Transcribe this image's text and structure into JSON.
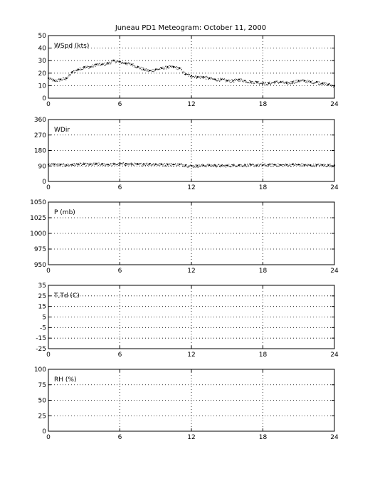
{
  "title": "Juneau PD1 Meteogram:    October 11, 2000",
  "chart_data": [
    {
      "type": "scatter",
      "panel_label": "WSpd (kts)",
      "xlim": [
        0,
        24
      ],
      "ylim": [
        0,
        50
      ],
      "xticks": [
        0,
        6,
        12,
        18,
        24
      ],
      "yticks": [
        0,
        10,
        20,
        30,
        40,
        50
      ],
      "grid": true,
      "series": [
        {
          "x": [
            0,
            0.5,
            1,
            1.5,
            2,
            2.5,
            3,
            3.5,
            4,
            4.5,
            5,
            5.5,
            6,
            6.5,
            7,
            7.5,
            8,
            8.5,
            9,
            9.5,
            10,
            10.5,
            11,
            11.5,
            12,
            12.5,
            13,
            13.5,
            14,
            14.5,
            15,
            15.5,
            16,
            16.5,
            17,
            17.5,
            18,
            18.5,
            19,
            19.5,
            20,
            20.5,
            21,
            21.5,
            22,
            22.5,
            23,
            23.5,
            24
          ],
          "y": [
            16,
            14,
            15,
            16,
            21,
            23,
            25,
            25,
            27,
            27,
            28,
            30,
            29,
            28,
            27,
            25,
            23,
            22,
            23,
            24,
            25,
            25,
            24,
            19,
            18,
            17,
            17,
            16,
            15,
            15,
            14,
            14,
            15,
            14,
            13,
            13,
            12,
            12,
            13,
            13,
            12,
            13,
            14,
            14,
            13,
            13,
            12,
            11,
            10
          ]
        }
      ]
    },
    {
      "type": "scatter",
      "panel_label": "WDir",
      "xlim": [
        0,
        24
      ],
      "ylim": [
        0,
        360
      ],
      "xticks": [
        0,
        6,
        12,
        18,
        24
      ],
      "yticks": [
        0,
        90,
        180,
        270,
        360
      ],
      "grid": true,
      "series": [
        {
          "x": [
            0,
            0.5,
            1,
            1.5,
            2,
            2.5,
            3,
            3.5,
            4,
            4.5,
            5,
            5.5,
            6,
            6.5,
            7,
            7.5,
            8,
            8.5,
            9,
            9.5,
            10,
            10.5,
            11,
            11.5,
            12,
            12.5,
            13,
            13.5,
            14,
            14.5,
            15,
            15.5,
            16,
            16.5,
            17,
            17.5,
            18,
            18.5,
            19,
            19.5,
            20,
            20.5,
            21,
            21.5,
            22,
            22.5,
            23,
            23.5,
            24
          ],
          "y": [
            98,
            100,
            97,
            96,
            99,
            101,
            100,
            100,
            102,
            100,
            99,
            101,
            102,
            103,
            101,
            100,
            102,
            103,
            101,
            100,
            100,
            99,
            100,
            95,
            91,
            92,
            94,
            95,
            94,
            92,
            93,
            95,
            96,
            95,
            96,
            95,
            96,
            97,
            98,
            96,
            97,
            99,
            98,
            96,
            95,
            96,
            96,
            95,
            94
          ]
        }
      ]
    },
    {
      "type": "scatter",
      "panel_label": "P (mb)",
      "xlim": [
        0,
        24
      ],
      "ylim": [
        950,
        1050
      ],
      "xticks": [
        0,
        6,
        12,
        18,
        24
      ],
      "yticks": [
        950,
        975,
        1000,
        1025,
        1050
      ],
      "grid": true,
      "series": []
    },
    {
      "type": "scatter",
      "panel_label": "T,Td (C)",
      "xlim": [
        0,
        24
      ],
      "ylim": [
        -25,
        35
      ],
      "xticks": [
        0,
        6,
        12,
        18,
        24
      ],
      "yticks": [
        -25,
        -15,
        -5,
        5,
        15,
        25,
        35
      ],
      "grid": true,
      "series": []
    },
    {
      "type": "scatter",
      "panel_label": "RH (%)",
      "xlim": [
        0,
        24
      ],
      "ylim": [
        0,
        100
      ],
      "xticks": [
        0,
        6,
        12,
        18,
        24
      ],
      "yticks": [
        0,
        25,
        50,
        75,
        100
      ],
      "grid": true,
      "series": []
    }
  ]
}
